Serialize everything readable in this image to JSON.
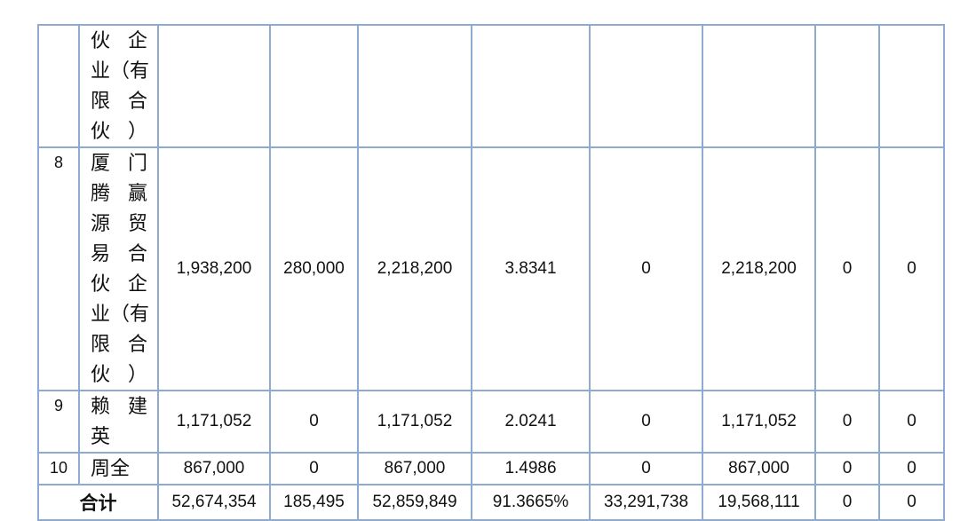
{
  "table": {
    "rows": [
      {
        "name_lines": [
          "伙企",
          "业（有",
          "限合",
          "伙）"
        ]
      },
      {
        "index": "8",
        "name_lines": [
          "厦门",
          "腾赢",
          "源贸",
          "易合",
          "伙企",
          "业（有",
          "限合",
          "伙）"
        ],
        "cells": [
          "1,938,200",
          "280,000",
          "2,218,200",
          "3.8341",
          "0",
          "2,218,200",
          "0",
          "0"
        ]
      },
      {
        "index": "9",
        "name_lines": [
          "赖建",
          "英"
        ],
        "cells": [
          "1,171,052",
          "0",
          "1,171,052",
          "2.0241",
          "0",
          "1,171,052",
          "0",
          "0"
        ]
      },
      {
        "index": "10",
        "name_lines": [
          "周全"
        ],
        "cells": [
          "867,000",
          "0",
          "867,000",
          "1.4986",
          "0",
          "867,000",
          "0",
          "0"
        ]
      }
    ],
    "total": {
      "label": "合计",
      "cells": [
        "52,674,354",
        "185,495",
        "52,859,849",
        "91.3665%",
        "33,291,738",
        "19,568,111",
        "0",
        "0"
      ]
    }
  }
}
